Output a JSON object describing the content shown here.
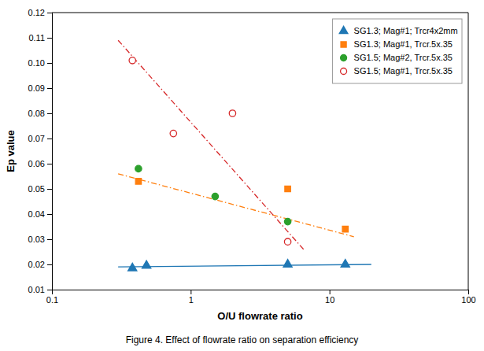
{
  "chart_data": {
    "type": "scatter",
    "xlabel": "O/U flowrate ratio",
    "ylabel": "Ep value",
    "caption": "Figure 4.   Effect of flowrate ratio on separation efficiency",
    "log": "x",
    "grid": false,
    "legend": "upper right",
    "xlim": [
      0.1,
      100
    ],
    "ylim": [
      0.01,
      0.12
    ],
    "xticks": [
      0.1,
      1,
      10,
      100
    ],
    "yticks": [
      0.01,
      0.02,
      0.03,
      0.04,
      0.05,
      0.06,
      0.07,
      0.08,
      0.09,
      {
        "value": 0.1,
        "label": "0.10"
      },
      0.11,
      0.12
    ],
    "series": [
      {
        "name": "SG1.3; Mag#1; Trcr4x2mm",
        "marker": "triangle",
        "x": [
          0.38,
          0.48,
          5.0,
          13.0
        ],
        "values": [
          0.0185,
          0.0195,
          0.02,
          0.02
        ],
        "trend": {
          "x": [
            0.3,
            20.0
          ],
          "values": [
            0.019,
            0.02
          ],
          "line_style": "solid"
        }
      },
      {
        "name": "SG1.3; Mag#1, Trcr.5x.35",
        "marker": "square",
        "x": [
          0.42,
          5.0,
          13.0
        ],
        "values": [
          0.053,
          0.05,
          0.034
        ],
        "trend": {
          "x": [
            0.3,
            15.0
          ],
          "values": [
            0.056,
            0.031
          ],
          "line_style": "dashdot"
        }
      },
      {
        "name": "SG1.5; Mag#2, Trcr.5x.35",
        "marker": "circle",
        "x": [
          0.42,
          1.5,
          5.0
        ],
        "values": [
          0.058,
          0.047,
          0.037
        ]
      },
      {
        "name": "SG1.5; Mag#1, Trcr.5x.35",
        "marker": "open-circle",
        "x": [
          0.38,
          0.75,
          2.0,
          5.0
        ],
        "values": [
          0.101,
          0.072,
          0.08,
          0.029
        ],
        "trend": {
          "x": [
            0.3,
            6.5
          ],
          "values": [
            0.109,
            0.026
          ],
          "line_style": "dashdot"
        }
      }
    ]
  }
}
